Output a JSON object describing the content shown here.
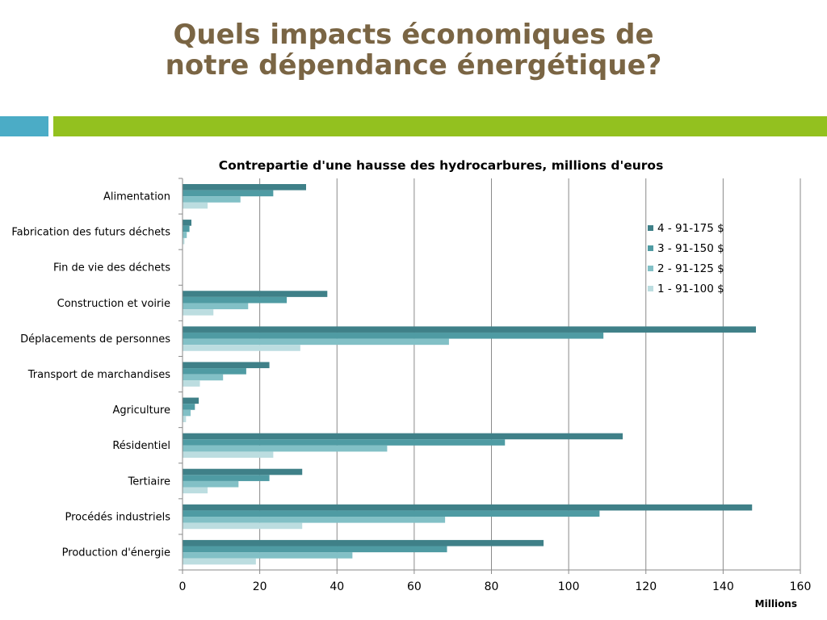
{
  "slide": {
    "title_line1": "Quels impacts économiques de",
    "title_line2": "notre dépendance énergétique?"
  },
  "colors": {
    "title": "#7a6544",
    "accent_teal": "#4bacc6",
    "accent_green": "#93c11f"
  },
  "chart_data": {
    "type": "bar",
    "orientation": "horizontal",
    "title": "Contrepartie d'une hausse des hydrocarbures, millions d'euros",
    "xlabel": "Millions",
    "ylabel": "",
    "xlim": [
      0,
      160
    ],
    "xticks": [
      0,
      20,
      40,
      60,
      80,
      100,
      120,
      140,
      160
    ],
    "grid": true,
    "legend_position": "top-right",
    "categories": [
      "Alimentation",
      "Fabrication des futurs déchets",
      "Fin de vie des déchets",
      "Construction et voirie",
      "Déplacements de personnes",
      "Transport de marchandises",
      "Agriculture",
      "Résidentiel",
      "Tertiaire",
      "Procédés industriels",
      "Production d'énergie"
    ],
    "series": [
      {
        "name": "4 - 91-175 $",
        "color": "#3f8088",
        "values": [
          32,
          2.3,
          0,
          37.5,
          148.5,
          22.5,
          4.2,
          114,
          31,
          147.5,
          93.5
        ]
      },
      {
        "name": "3 - 91-150 $",
        "color": "#4f9ba3",
        "values": [
          23.5,
          1.8,
          0,
          27,
          109,
          16.5,
          3.2,
          83.5,
          22.5,
          108,
          68.5
        ]
      },
      {
        "name": "2 - 91-125 $",
        "color": "#82c0c6",
        "values": [
          15,
          1.1,
          0,
          17,
          69,
          10.5,
          2.1,
          53,
          14.5,
          68,
          44
        ]
      },
      {
        "name": "1 - 91-100 $",
        "color": "#bcdde0",
        "values": [
          6.5,
          0.5,
          0,
          8,
          30.5,
          4.5,
          0.9,
          23.5,
          6.5,
          31,
          19
        ]
      }
    ]
  }
}
